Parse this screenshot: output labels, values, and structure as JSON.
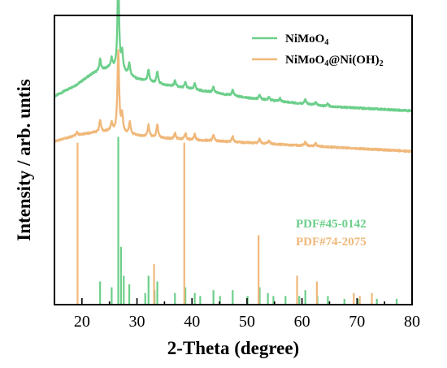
{
  "chart_data": {
    "type": "line",
    "xlabel": "2-Theta (degree)",
    "ylabel": "Intensity / arb. untis",
    "xlim": [
      15,
      80
    ],
    "x_ticks": [
      20,
      30,
      40,
      50,
      60,
      70,
      80
    ],
    "y_ticks_shown": false,
    "grid": false,
    "legend_position": "top-right",
    "series": [
      {
        "name": "NiMoO4",
        "legend_parts": [
          {
            "t": "NiMoO",
            "sub": false
          },
          {
            "t": "4",
            "sub": true
          }
        ],
        "color": "#6ccf8a",
        "baseline": [
          [
            15,
            0.72
          ],
          [
            19,
            0.76
          ],
          [
            22,
            0.8
          ],
          [
            25,
            0.82
          ],
          [
            27,
            0.81
          ],
          [
            30,
            0.78
          ],
          [
            35,
            0.76
          ],
          [
            40,
            0.745
          ],
          [
            45,
            0.73
          ],
          [
            50,
            0.715
          ],
          [
            55,
            0.705
          ],
          [
            60,
            0.695
          ],
          [
            65,
            0.685
          ],
          [
            70,
            0.68
          ],
          [
            75,
            0.675
          ],
          [
            80,
            0.67
          ]
        ],
        "peaks": [
          [
            23.3,
            0.04
          ],
          [
            25.4,
            0.03
          ],
          [
            26.6,
            0.31
          ],
          [
            27.3,
            0.06
          ],
          [
            28.6,
            0.04
          ],
          [
            32.1,
            0.04
          ],
          [
            33.7,
            0.04
          ],
          [
            36.9,
            0.02
          ],
          [
            38.8,
            0.02
          ],
          [
            40.5,
            0.02
          ],
          [
            43.9,
            0.02
          ],
          [
            47.4,
            0.02
          ],
          [
            52.3,
            0.015
          ],
          [
            54.0,
            0.012
          ],
          [
            56.0,
            0.01
          ],
          [
            60.6,
            0.015
          ],
          [
            62.5,
            0.01
          ],
          [
            64.7,
            0.01
          ]
        ]
      },
      {
        "name": "NiMoO4@Ni(OH)2",
        "legend_parts": [
          {
            "t": "NiMoO",
            "sub": false
          },
          {
            "t": "4",
            "sub": true
          },
          {
            "t": "@Ni(OH)",
            "sub": false
          },
          {
            "t": "2",
            "sub": true
          }
        ],
        "color": "#f0b87a",
        "baseline": [
          [
            15,
            0.565
          ],
          [
            19,
            0.585
          ],
          [
            22,
            0.595
          ],
          [
            25,
            0.6
          ],
          [
            27,
            0.595
          ],
          [
            30,
            0.585
          ],
          [
            35,
            0.575
          ],
          [
            40,
            0.57
          ],
          [
            45,
            0.565
          ],
          [
            50,
            0.56
          ],
          [
            55,
            0.555
          ],
          [
            60,
            0.55
          ],
          [
            65,
            0.545
          ],
          [
            70,
            0.54
          ],
          [
            75,
            0.535
          ],
          [
            80,
            0.53
          ]
        ],
        "peaks": [
          [
            19.1,
            0.01
          ],
          [
            23.3,
            0.04
          ],
          [
            25.4,
            0.03
          ],
          [
            26.6,
            0.28
          ],
          [
            27.3,
            0.06
          ],
          [
            28.7,
            0.04
          ],
          [
            32.1,
            0.04
          ],
          [
            33.7,
            0.045
          ],
          [
            36.9,
            0.02
          ],
          [
            38.8,
            0.02
          ],
          [
            40.5,
            0.02
          ],
          [
            43.9,
            0.02
          ],
          [
            47.4,
            0.02
          ],
          [
            52.3,
            0.015
          ],
          [
            54.0,
            0.012
          ],
          [
            60.6,
            0.015
          ],
          [
            62.5,
            0.01
          ]
        ]
      }
    ],
    "reference_patterns": [
      {
        "name": "PDF#45-0142",
        "color": "#6ccf8a",
        "lines": [
          [
            23.3,
            0.08
          ],
          [
            25.4,
            0.06
          ],
          [
            26.6,
            0.58
          ],
          [
            27.1,
            0.2
          ],
          [
            27.6,
            0.1
          ],
          [
            28.6,
            0.07
          ],
          [
            31.5,
            0.04
          ],
          [
            32.1,
            0.1
          ],
          [
            33.2,
            0.05
          ],
          [
            33.7,
            0.08
          ],
          [
            36.9,
            0.04
          ],
          [
            38.8,
            0.06
          ],
          [
            40.5,
            0.04
          ],
          [
            41.5,
            0.03
          ],
          [
            43.9,
            0.05
          ],
          [
            45.1,
            0.03
          ],
          [
            47.4,
            0.05
          ],
          [
            50.1,
            0.03
          ],
          [
            52.3,
            0.06
          ],
          [
            53.8,
            0.04
          ],
          [
            54.8,
            0.03
          ],
          [
            57.0,
            0.03
          ],
          [
            59.5,
            0.03
          ],
          [
            60.6,
            0.05
          ],
          [
            62.8,
            0.03
          ],
          [
            64.7,
            0.03
          ],
          [
            67.7,
            0.02
          ],
          [
            70.2,
            0.02
          ],
          [
            73.6,
            0.02
          ],
          [
            77.2,
            0.02
          ]
        ]
      },
      {
        "name": "PDF#74-2075",
        "color": "#f0b87a",
        "lines": [
          [
            19.2,
            0.56
          ],
          [
            33.1,
            0.14
          ],
          [
            38.6,
            0.56
          ],
          [
            52.1,
            0.24
          ],
          [
            59.1,
            0.1
          ],
          [
            62.7,
            0.08
          ],
          [
            69.4,
            0.04
          ],
          [
            70.5,
            0.03
          ],
          [
            72.7,
            0.04
          ]
        ]
      }
    ]
  }
}
